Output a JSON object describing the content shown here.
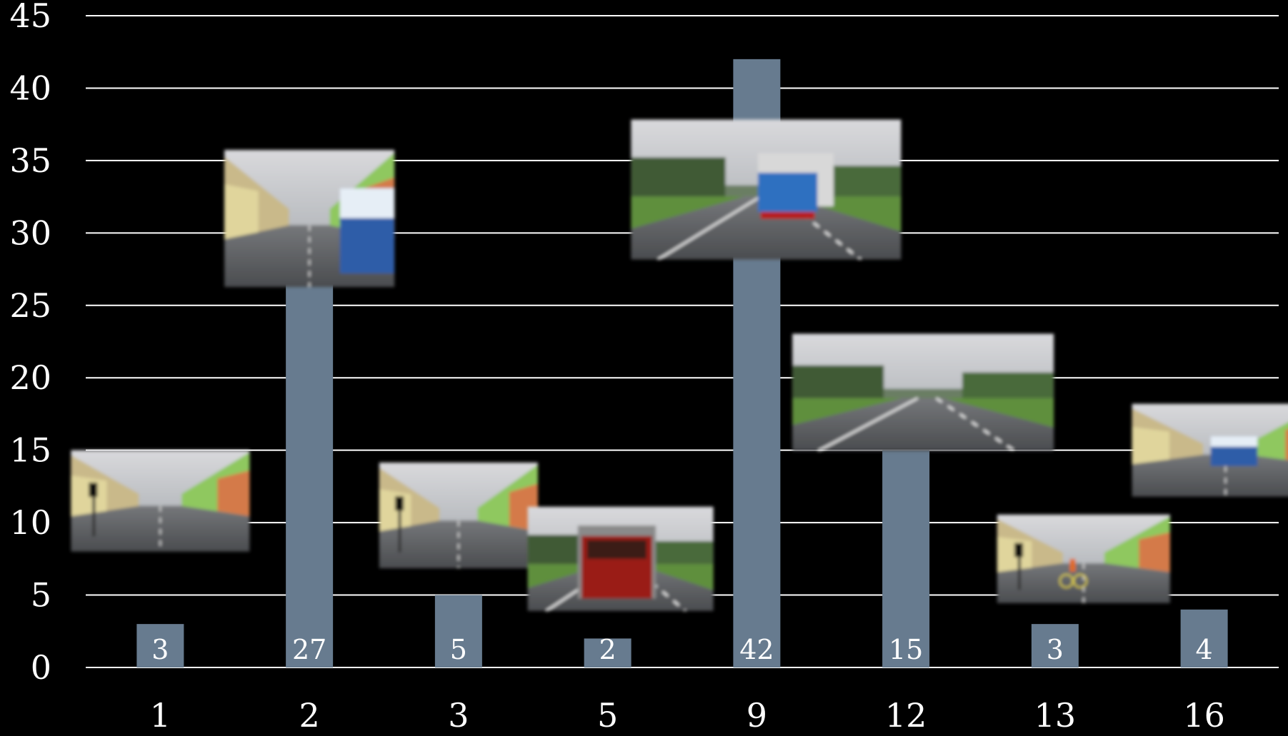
{
  "chart_data": {
    "type": "bar",
    "title": "",
    "xlabel": "",
    "ylabel": "",
    "categories": [
      "1",
      "2",
      "3",
      "5",
      "9",
      "12",
      "13",
      "16"
    ],
    "values": [
      3,
      27,
      5,
      2,
      42,
      15,
      3,
      4
    ],
    "data_labels": [
      "3",
      "27",
      "5",
      "2",
      "42",
      "15",
      "3",
      "4"
    ],
    "ylim": [
      0,
      45
    ],
    "yticks": [
      "0",
      "5",
      "10",
      "15",
      "20",
      "25",
      "30",
      "35",
      "40",
      "45"
    ],
    "grid": true,
    "legend": "none",
    "bar_color": "#677b8f",
    "background": "#000000",
    "text_color": "#ffffff",
    "thumbnails": [
      {
        "category": "1",
        "subject": "street with traffic lights, crossing sign and car",
        "level": 11.5
      },
      {
        "category": "2",
        "subject": "pedestrian crossing in front of blue bus",
        "level": 31
      },
      {
        "category": "3",
        "subject": "street with apartment blocks and crosswalk",
        "level": 10.5
      },
      {
        "category": "5",
        "subject": "red truck on rural road",
        "level": 7.5
      },
      {
        "category": "9",
        "subject": "blue truck ahead on rural road",
        "level": 33
      },
      {
        "category": "12",
        "subject": "empty two-lane rural road",
        "level": 19
      },
      {
        "category": "13",
        "subject": "cyclist at crossing with traffic lights",
        "level": 7.5
      },
      {
        "category": "16",
        "subject": "bus at bus stop on town street",
        "level": 15
      }
    ]
  }
}
